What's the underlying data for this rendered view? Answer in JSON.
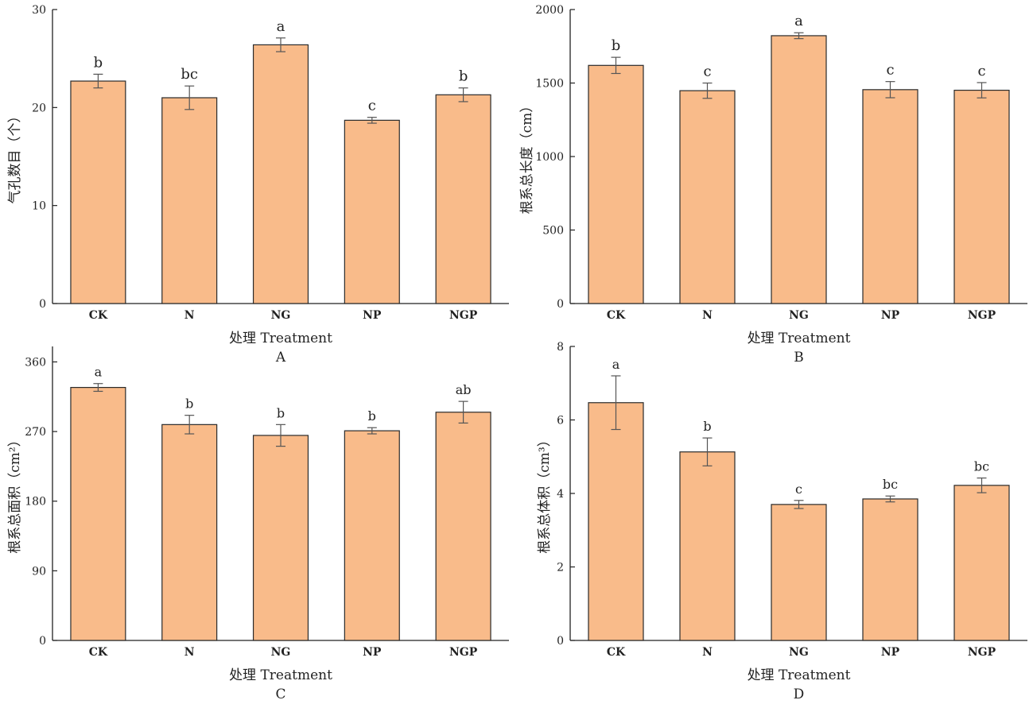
{
  "chart_data": [
    {
      "type": "bar",
      "panel_label": "A",
      "categories": [
        "CK",
        "N",
        "NG",
        "NP",
        "NGP"
      ],
      "values": [
        22.7,
        21.0,
        26.4,
        18.7,
        21.3
      ],
      "errors": [
        0.7,
        1.2,
        0.7,
        0.3,
        0.7
      ],
      "significance": [
        "b",
        "bc",
        "a",
        "c",
        "b"
      ],
      "xlabel": "处理 Treatment",
      "ylabel": "气孔数目（个）",
      "ylim": [
        0,
        30
      ],
      "yticks": [
        0,
        10,
        20,
        30
      ],
      "bar_color": "#f9bb8a"
    },
    {
      "type": "bar",
      "panel_label": "B",
      "categories": [
        "CK",
        "N",
        "NG",
        "NP",
        "NGP"
      ],
      "values": [
        1620,
        1448,
        1822,
        1455,
        1451
      ],
      "errors": [
        55,
        52,
        20,
        55,
        52
      ],
      "significance": [
        "b",
        "c",
        "a",
        "c",
        "c"
      ],
      "xlabel": "处理 Treatment",
      "ylabel": "根系总长度（cm）",
      "ylim": [
        0,
        2000
      ],
      "yticks": [
        0,
        500,
        1000,
        1500,
        2000
      ],
      "bar_color": "#f9bb8a"
    },
    {
      "type": "bar",
      "panel_label": "C",
      "categories": [
        "CK",
        "N",
        "NG",
        "NP",
        "NGP"
      ],
      "values": [
        327,
        279,
        265,
        271,
        295
      ],
      "errors": [
        5,
        12,
        14,
        4,
        14
      ],
      "significance": [
        "a",
        "b",
        "b",
        "b",
        "ab"
      ],
      "xlabel": "处理 Treatment",
      "ylabel": "根系总面积（cm²）",
      "ylim": [
        0,
        380
      ],
      "yticks": [
        0,
        90,
        180,
        270,
        360
      ],
      "bar_color": "#f9bb8a"
    },
    {
      "type": "bar",
      "panel_label": "D",
      "categories": [
        "CK",
        "N",
        "NG",
        "NP",
        "NGP"
      ],
      "values": [
        6.47,
        5.13,
        3.7,
        3.85,
        4.22
      ],
      "errors": [
        0.73,
        0.38,
        0.11,
        0.08,
        0.2
      ],
      "significance": [
        "a",
        "b",
        "c",
        "bc",
        "bc"
      ],
      "xlabel": "处理 Treatment",
      "ylabel": "根系总体积（cm³）",
      "ylim": [
        0,
        8
      ],
      "yticks": [
        0,
        2,
        4,
        6,
        8
      ],
      "bar_color": "#f9bb8a"
    }
  ]
}
